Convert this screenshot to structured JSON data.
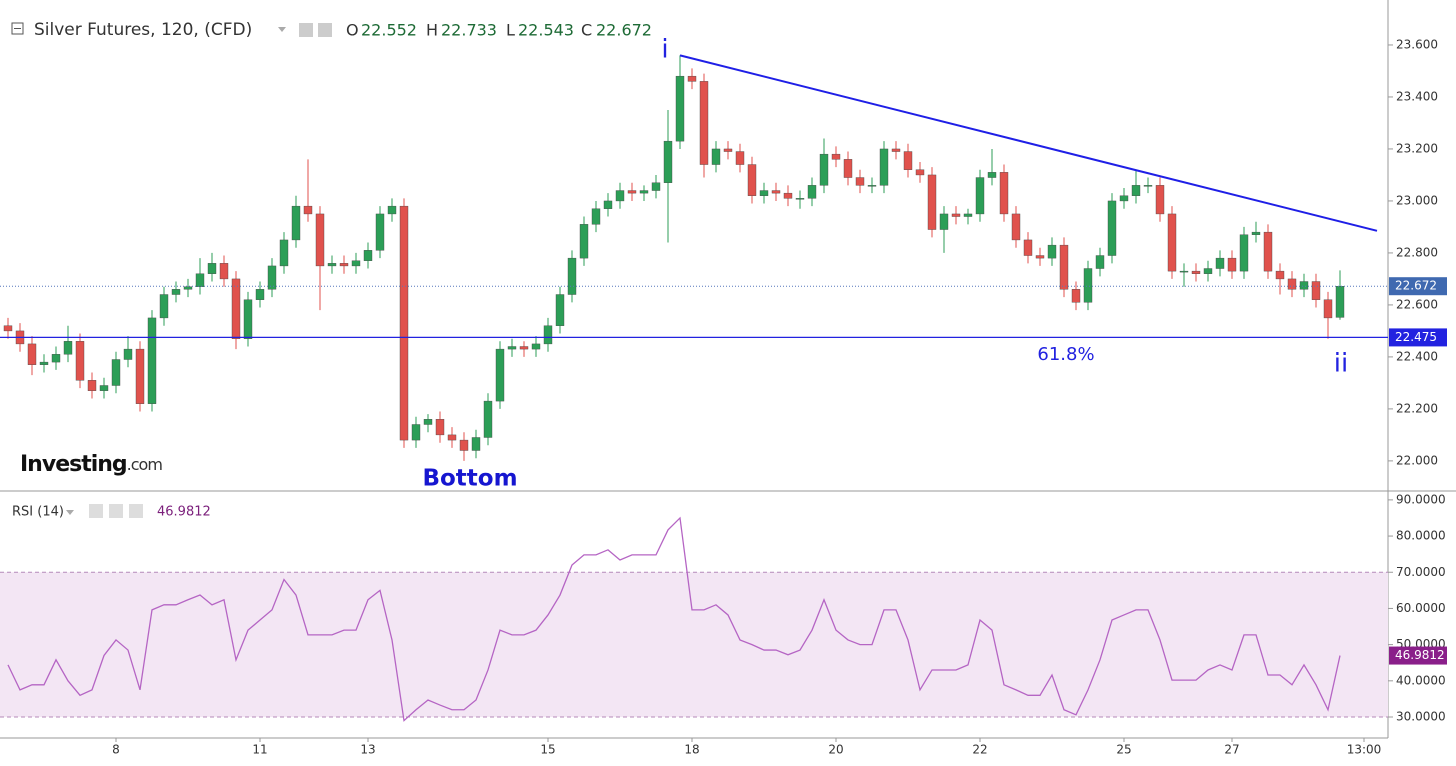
{
  "chart_data": [
    {
      "type": "candlestick",
      "title": "Silver Futures, 120, (CFD)",
      "ohlc_labels": [
        "O",
        "H",
        "L",
        "C"
      ],
      "categories": [
        null,
        null,
        null,
        null,
        null,
        null,
        null,
        null,
        null,
        "8",
        null,
        null,
        null,
        null,
        null,
        null,
        null,
        null,
        null,
        null,
        null,
        "11",
        null,
        null,
        null,
        null,
        null,
        null,
        null,
        null,
        "13",
        null,
        null,
        null,
        null,
        null,
        null,
        null,
        null,
        null,
        null,
        null,
        null,
        null,
        null,
        "15",
        null,
        null,
        null,
        null,
        null,
        null,
        null,
        null,
        null,
        null,
        null,
        "18",
        null,
        null,
        null,
        null,
        null,
        null,
        null,
        null,
        null,
        null,
        null,
        "20",
        null,
        null,
        null,
        null,
        null,
        null,
        null,
        null,
        null,
        null,
        null,
        "22",
        null,
        null,
        null,
        null,
        null,
        null,
        null,
        null,
        null,
        null,
        null,
        "25",
        null,
        null,
        null,
        null,
        null,
        null,
        null,
        null,
        "27",
        null,
        null,
        null,
        null,
        null,
        null,
        null,
        null,
        null,
        null,
        "13:00"
      ],
      "open": [
        22.52,
        22.5,
        22.45,
        22.37,
        22.38,
        22.41,
        22.46,
        22.31,
        22.27,
        22.29,
        22.39,
        22.43,
        22.22,
        22.55,
        22.64,
        22.66,
        22.67,
        22.72,
        22.76,
        22.7,
        22.47,
        22.62,
        22.66,
        22.75,
        22.85,
        22.98,
        22.95,
        22.75,
        22.76,
        22.75,
        22.77,
        22.81,
        22.95,
        22.98,
        22.08,
        22.14,
        22.16,
        22.1,
        22.08,
        22.04,
        22.09,
        22.23,
        22.43,
        22.44,
        22.43,
        22.45,
        22.52,
        22.64,
        22.78,
        22.91,
        22.97,
        23.0,
        23.04,
        23.03,
        23.04,
        23.07,
        23.23,
        23.48,
        23.46,
        23.14,
        23.2,
        23.19,
        23.14,
        23.02,
        23.04,
        23.03,
        23.01,
        23.01,
        23.06,
        23.18,
        23.16,
        23.09,
        23.06,
        23.06,
        23.2,
        23.19,
        23.12,
        23.1,
        22.89,
        22.95,
        22.94,
        22.95,
        23.09,
        23.11,
        22.95,
        22.85,
        22.79,
        22.78,
        22.83,
        22.66,
        22.61,
        22.74,
        22.79,
        23.0,
        23.02,
        23.06,
        23.06,
        22.95,
        22.73,
        22.73,
        22.72,
        22.74,
        22.78,
        22.73,
        22.87,
        22.88,
        22.73,
        22.7,
        22.66,
        22.69,
        22.62,
        22.552,
        null,
        null
      ],
      "high": [
        22.55,
        22.53,
        22.48,
        22.41,
        22.44,
        22.52,
        22.49,
        22.34,
        22.32,
        22.42,
        22.48,
        22.46,
        22.58,
        22.67,
        22.69,
        22.7,
        22.78,
        22.8,
        22.79,
        22.73,
        22.65,
        22.69,
        22.78,
        22.88,
        23.02,
        23.16,
        22.98,
        22.79,
        22.79,
        22.8,
        22.84,
        22.98,
        23.01,
        23.01,
        22.17,
        22.18,
        22.19,
        22.13,
        22.11,
        22.12,
        22.26,
        22.46,
        22.47,
        22.46,
        22.48,
        22.55,
        22.67,
        22.81,
        22.94,
        23.0,
        23.03,
        23.07,
        23.07,
        23.06,
        23.1,
        23.35,
        23.56,
        23.51,
        23.49,
        23.23,
        23.23,
        23.22,
        23.17,
        23.07,
        23.07,
        23.06,
        23.04,
        23.09,
        23.24,
        23.21,
        23.19,
        23.12,
        23.09,
        23.23,
        23.23,
        23.22,
        23.15,
        23.13,
        22.98,
        22.98,
        22.97,
        23.12,
        23.2,
        23.14,
        22.98,
        22.88,
        22.82,
        22.86,
        22.86,
        22.69,
        22.77,
        22.82,
        23.03,
        23.05,
        23.12,
        23.09,
        23.09,
        22.98,
        22.76,
        22.76,
        22.77,
        22.81,
        22.81,
        22.9,
        22.92,
        22.91,
        22.76,
        22.73,
        22.72,
        22.72,
        22.65,
        22.733,
        null,
        null
      ],
      "low": [
        22.47,
        22.42,
        22.33,
        22.34,
        22.35,
        22.38,
        22.28,
        22.24,
        22.24,
        22.26,
        22.36,
        22.19,
        22.19,
        22.52,
        22.61,
        22.63,
        22.64,
        22.69,
        22.67,
        22.43,
        22.44,
        22.59,
        22.63,
        22.72,
        22.82,
        22.92,
        22.58,
        22.72,
        22.72,
        22.72,
        22.74,
        22.78,
        22.92,
        22.05,
        22.05,
        22.11,
        22.07,
        22.05,
        22.0,
        22.01,
        22.06,
        22.2,
        22.4,
        22.4,
        22.4,
        22.42,
        22.49,
        22.61,
        22.75,
        22.88,
        22.94,
        22.97,
        23.0,
        23.0,
        23.01,
        22.84,
        23.2,
        23.43,
        23.09,
        23.11,
        23.16,
        23.11,
        22.99,
        22.99,
        23.0,
        22.98,
        22.97,
        22.98,
        23.03,
        23.13,
        23.06,
        23.03,
        23.03,
        23.03,
        23.16,
        23.09,
        23.07,
        22.86,
        22.8,
        22.91,
        22.91,
        22.92,
        23.06,
        22.92,
        22.82,
        22.76,
        22.75,
        22.75,
        22.63,
        22.58,
        22.58,
        22.71,
        22.76,
        22.97,
        22.99,
        23.03,
        22.92,
        22.7,
        22.67,
        22.69,
        22.69,
        22.71,
        22.7,
        22.7,
        22.84,
        22.7,
        22.64,
        22.63,
        22.63,
        22.59,
        22.47,
        22.543,
        null,
        null
      ],
      "close": [
        22.5,
        22.45,
        22.37,
        22.38,
        22.41,
        22.46,
        22.31,
        22.27,
        22.29,
        22.39,
        22.43,
        22.22,
        22.55,
        22.64,
        22.66,
        22.67,
        22.72,
        22.76,
        22.7,
        22.47,
        22.62,
        22.66,
        22.75,
        22.85,
        22.98,
        22.95,
        22.75,
        22.76,
        22.75,
        22.77,
        22.81,
        22.95,
        22.98,
        22.08,
        22.14,
        22.16,
        22.1,
        22.08,
        22.04,
        22.09,
        22.23,
        22.43,
        22.44,
        22.43,
        22.45,
        22.52,
        22.64,
        22.78,
        22.91,
        22.97,
        23.0,
        23.04,
        23.03,
        23.04,
        23.07,
        23.23,
        23.48,
        23.46,
        23.14,
        23.2,
        23.19,
        23.14,
        23.02,
        23.04,
        23.03,
        23.01,
        23.01,
        23.06,
        23.18,
        23.16,
        23.09,
        23.06,
        23.06,
        23.2,
        23.19,
        23.12,
        23.1,
        22.89,
        22.95,
        22.94,
        22.95,
        23.09,
        23.11,
        22.95,
        22.85,
        22.79,
        22.78,
        22.83,
        22.66,
        22.61,
        22.74,
        22.79,
        23.0,
        23.02,
        23.06,
        23.06,
        22.95,
        22.73,
        22.73,
        22.72,
        22.74,
        22.78,
        22.73,
        22.87,
        22.88,
        22.73,
        22.7,
        22.66,
        22.69,
        22.62,
        22.55,
        22.672,
        null,
        null
      ],
      "up_color": "#2c9e57",
      "down_color": "#e0524d",
      "ylim": [
        21.888,
        23.773
      ],
      "yticks": [
        {
          "value": 22.0,
          "label": "22.000"
        },
        {
          "value": 22.2,
          "label": "22.200"
        },
        {
          "value": 22.4,
          "label": "22.400"
        },
        {
          "value": 22.6,
          "label": "22.600"
        },
        {
          "value": 22.8,
          "label": "22.800"
        },
        {
          "value": 23.0,
          "label": "23.000"
        },
        {
          "value": 23.2,
          "label": "23.200"
        },
        {
          "value": 23.4,
          "label": "23.400"
        },
        {
          "value": 23.6,
          "label": "23.600"
        }
      ],
      "reference_line": 22.475,
      "reference_color": "#2222e0",
      "trendline": [
        23.56,
        22.885
      ],
      "annotations": [
        {
          "text": "i"
        },
        {
          "text": "ii"
        },
        {
          "text": "61.8%"
        },
        {
          "text": "Bottom"
        }
      ],
      "watermark": "Investing",
      "watermark_suffix": ".com"
    },
    {
      "type": "line",
      "title": "RSI (14)",
      "values": [
        44.4,
        37.5,
        38.9,
        38.9,
        45.8,
        40.0,
        36.0,
        37.5,
        47.0,
        51.3,
        48.5,
        37.5,
        59.6,
        61.0,
        61.0,
        62.4,
        63.7,
        61.0,
        62.4,
        45.8,
        54.0,
        56.8,
        59.6,
        68.0,
        63.7,
        52.7,
        52.7,
        52.7,
        54.0,
        54.0,
        62.4,
        65.0,
        51.3,
        29.0,
        32.0,
        34.7,
        33.3,
        32.0,
        32.0,
        34.7,
        43.0,
        54.0,
        52.7,
        52.7,
        54.0,
        58.2,
        63.7,
        72.0,
        74.8,
        74.8,
        76.2,
        73.4,
        74.8,
        74.8,
        74.8,
        81.7,
        85.0,
        59.6,
        59.6,
        61.0,
        58.2,
        51.3,
        50.0,
        48.5,
        48.5,
        47.2,
        48.5,
        54.0,
        62.4,
        54.0,
        51.3,
        50.0,
        50.0,
        59.6,
        59.6,
        51.3,
        37.5,
        43.0,
        43.0,
        43.0,
        44.4,
        56.8,
        54.0,
        38.9,
        37.5,
        36.0,
        36.0,
        41.6,
        32.0,
        30.6,
        37.5,
        45.8,
        56.8,
        58.2,
        59.6,
        59.6,
        51.3,
        40.2,
        40.2,
        40.2,
        43.0,
        44.4,
        43.0,
        52.7,
        52.7,
        41.6,
        41.6,
        38.9,
        44.4,
        38.9,
        32.0,
        46.9812,
        null,
        null
      ],
      "color": "#b565c4",
      "label_color": "#8a1f8a",
      "ylim": [
        24.2,
        91.9
      ],
      "yticks": [
        {
          "value": 30,
          "label": "30.0000"
        },
        {
          "value": 40,
          "label": "40.0000"
        },
        {
          "value": 50,
          "label": "50.0000"
        },
        {
          "value": 60,
          "label": "60.0000"
        },
        {
          "value": 70,
          "label": "70.0000"
        },
        {
          "value": 80,
          "label": "80.0000"
        },
        {
          "value": 90,
          "label": "90.0000"
        }
      ],
      "band": [
        30,
        70
      ],
      "band_color": "#f3e6f4"
    }
  ]
}
